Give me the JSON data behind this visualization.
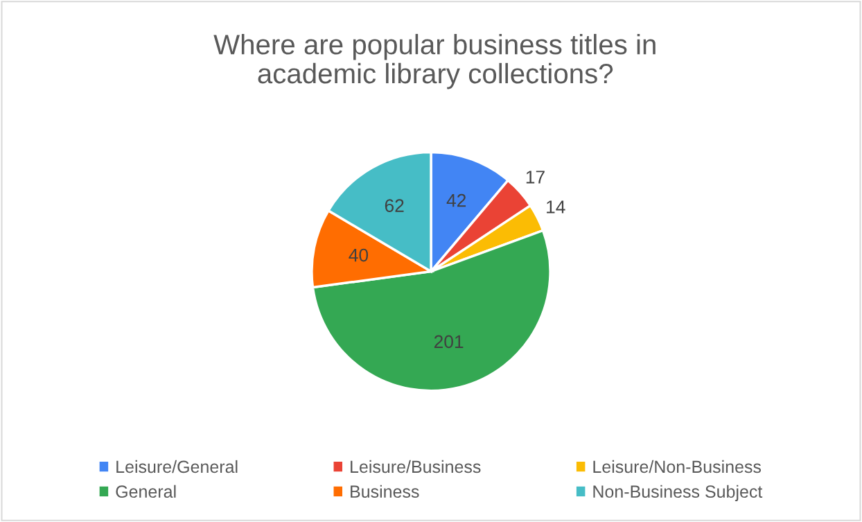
{
  "chart_data": {
    "type": "pie",
    "title": "Where are popular business titles in\nacademic library collections?",
    "categories": [
      "Leisure/General",
      "Leisure/Business",
      "Leisure/Non-Business",
      "General",
      "Business",
      "Non-Business Subject"
    ],
    "values": [
      42,
      17,
      14,
      201,
      40,
      62
    ],
    "colors": [
      "#4285f4",
      "#ea4335",
      "#fbbc04",
      "#34a853",
      "#ff6d01",
      "#46bdc6"
    ],
    "data_labels": true,
    "legend": "bottom"
  }
}
